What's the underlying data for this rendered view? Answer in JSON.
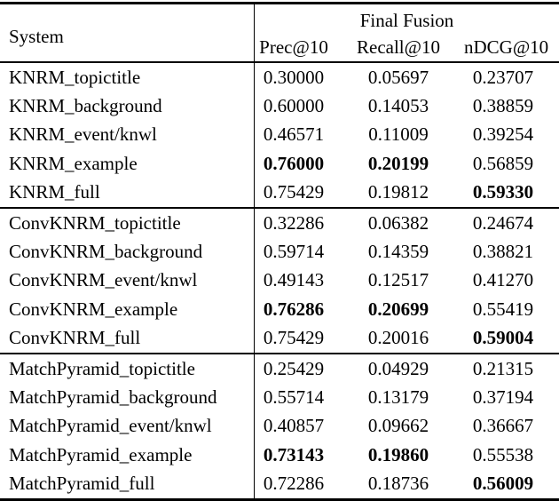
{
  "table": {
    "header": {
      "system_label": "System",
      "group_label": "Final Fusion",
      "columns": [
        "Prec@10",
        "Recall@10",
        "nDCG@10"
      ]
    },
    "groups": [
      {
        "rows": [
          {
            "label": "KNRM_topictitle",
            "values": [
              "0.30000",
              "0.05697",
              "0.23707"
            ],
            "bold": [
              false,
              false,
              false
            ]
          },
          {
            "label": "KNRM_background",
            "values": [
              "0.60000",
              "0.14053",
              "0.38859"
            ],
            "bold": [
              false,
              false,
              false
            ]
          },
          {
            "label": "KNRM_event/knwl",
            "values": [
              "0.46571",
              "0.11009",
              "0.39254"
            ],
            "bold": [
              false,
              false,
              false
            ]
          },
          {
            "label": "KNRM_example",
            "values": [
              "0.76000",
              "0.20199",
              "0.56859"
            ],
            "bold": [
              true,
              true,
              false
            ]
          },
          {
            "label": "KNRM_full",
            "values": [
              "0.75429",
              "0.19812",
              "0.59330"
            ],
            "bold": [
              false,
              false,
              true
            ]
          }
        ]
      },
      {
        "rows": [
          {
            "label": "ConvKNRM_topictitle",
            "values": [
              "0.32286",
              "0.06382",
              "0.24674"
            ],
            "bold": [
              false,
              false,
              false
            ]
          },
          {
            "label": "ConvKNRM_background",
            "values": [
              "0.59714",
              "0.14359",
              "0.38821"
            ],
            "bold": [
              false,
              false,
              false
            ]
          },
          {
            "label": "ConvKNRM_event/knwl",
            "values": [
              "0.49143",
              "0.12517",
              "0.41270"
            ],
            "bold": [
              false,
              false,
              false
            ]
          },
          {
            "label": "ConvKNRM_example",
            "values": [
              "0.76286",
              "0.20699",
              "0.55419"
            ],
            "bold": [
              true,
              true,
              false
            ]
          },
          {
            "label": "ConvKNRM_full",
            "values": [
              "0.75429",
              "0.20016",
              "0.59004"
            ],
            "bold": [
              false,
              false,
              true
            ]
          }
        ]
      },
      {
        "rows": [
          {
            "label": "MatchPyramid_topictitle",
            "values": [
              "0.25429",
              "0.04929",
              "0.21315"
            ],
            "bold": [
              false,
              false,
              false
            ]
          },
          {
            "label": "MatchPyramid_background",
            "values": [
              "0.55714",
              "0.13179",
              "0.37194"
            ],
            "bold": [
              false,
              false,
              false
            ]
          },
          {
            "label": "MatchPyramid_event/knwl",
            "values": [
              "0.40857",
              "0.09662",
              "0.36667"
            ],
            "bold": [
              false,
              false,
              false
            ]
          },
          {
            "label": "MatchPyramid_example",
            "values": [
              "0.73143",
              "0.19860",
              "0.55538"
            ],
            "bold": [
              true,
              true,
              false
            ]
          },
          {
            "label": "MatchPyramid_full",
            "values": [
              "0.72286",
              "0.18736",
              "0.56009"
            ],
            "bold": [
              false,
              false,
              true
            ]
          }
        ]
      }
    ]
  },
  "colors": {
    "text": "#000000",
    "rule": "#000000",
    "background": "#ffffff"
  }
}
